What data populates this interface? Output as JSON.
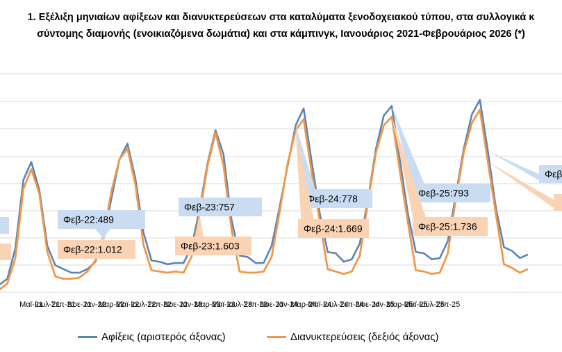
{
  "title_line1": "1. Εξέλιξη μηνιαίων αφίξεων και διανυκτερεύσεων στα καταλύματα ξενοδοχειακού τύπου, στα συλλογικά κ",
  "title_line2": "σύντομης διαμονής (ενοικιαζόμενα δωμάτια) και στα κάμπινγκ, Ιανουάριος 2021-Φεβρουάριος 2026 (*)",
  "colors": {
    "arrivals": "#5b84b4",
    "nights": "#f0974a",
    "arrivals_label_bg": "#c9dcf2",
    "nights_label_bg": "#f9d3b3",
    "grid": "#d9d9d9"
  },
  "chart_data": {
    "type": "line",
    "x_tick_labels": [
      "Μαϊ-21",
      "Ιουλ-21",
      "Σεπ-21",
      "Νοε-21",
      "Ιαν-22",
      "Μαρ-22",
      "Μαϊ-22",
      "Ιουλ-22",
      "Σεπ-22",
      "Νοε-22",
      "Ιαν-23",
      "Μαρ-23",
      "Μαϊ-23",
      "Ιουλ-23",
      "Σεπ-23",
      "Νοε-23",
      "Ιαν-24",
      "Μαρ-24",
      "Μαϊ-24",
      "Ιουλ-24",
      "Σεπ-24",
      "Νοε-24",
      "Ιαν-25",
      "Μαρ-25",
      "Μαϊ-25",
      "Ιουλ-25",
      "Σεπ-25"
    ],
    "series": [
      {
        "name": "Αφίξεις (αριστερός άξονας)",
        "axis": "left",
        "values": [
          0.06,
          0.11,
          0.36,
          0.92,
          1.07,
          0.84,
          0.38,
          0.22,
          0.19,
          0.16,
          0.16,
          0.19,
          0.25,
          0.44,
          0.77,
          1.09,
          1.22,
          0.93,
          0.49,
          0.26,
          0.25,
          0.23,
          0.24,
          0.24,
          0.37,
          0.68,
          1.06,
          1.33,
          1.13,
          0.59,
          0.3,
          0.29,
          0.24,
          0.24,
          0.38,
          0.7,
          1.04,
          1.37,
          1.51,
          1.07,
          0.65,
          0.33,
          0.32,
          0.25,
          0.27,
          0.4,
          0.75,
          1.17,
          1.45,
          1.53,
          1.09,
          0.65,
          0.33,
          0.32,
          0.27,
          0.28,
          0.42,
          0.8,
          1.18,
          1.46,
          1.58,
          1.16,
          0.69,
          0.37,
          0.34,
          0.28,
          0.31
        ]
      },
      {
        "name": "Διανυκτερεύσεις (δεξιός άξονας)",
        "axis": "right",
        "values": [
          0.02,
          0.07,
          0.28,
          0.85,
          1.01,
          0.81,
          0.33,
          0.13,
          0.11,
          0.11,
          0.12,
          0.17,
          0.26,
          0.46,
          0.83,
          1.09,
          1.18,
          0.88,
          0.39,
          0.18,
          0.17,
          0.16,
          0.17,
          0.16,
          0.29,
          0.64,
          1.04,
          1.31,
          1.04,
          0.51,
          0.17,
          0.16,
          0.16,
          0.17,
          0.29,
          0.66,
          1.06,
          1.33,
          1.42,
          0.98,
          0.59,
          0.19,
          0.17,
          0.15,
          0.17,
          0.3,
          0.73,
          1.14,
          1.37,
          1.44,
          1.0,
          0.58,
          0.18,
          0.17,
          0.15,
          0.16,
          0.32,
          0.77,
          1.15,
          1.39,
          1.5,
          1.07,
          0.64,
          0.23,
          0.2,
          0.16,
          0.19
        ]
      }
    ],
    "annotations": [
      {
        "series": "arrivals",
        "text": "Φεβ-22:489"
      },
      {
        "series": "nights",
        "text": "Φεβ-22:1.012"
      },
      {
        "series": "arrivals",
        "text": "Φεβ-23:757"
      },
      {
        "series": "nights",
        "text": "Φεβ-23:1.603"
      },
      {
        "series": "arrivals",
        "text": "Φεβ-24:778"
      },
      {
        "series": "nights",
        "text": "Φεβ-24:1.669"
      },
      {
        "series": "arrivals",
        "text": "Φεβ-25:793"
      },
      {
        "series": "nights",
        "text": "Φεβ-25:1.736"
      },
      {
        "series": "arrivals",
        "text": "Φεβ"
      },
      {
        "series": "nights",
        "text": ""
      },
      {
        "series": "arrivals",
        "text": ""
      },
      {
        "series": "nights",
        "text": ""
      }
    ],
    "legend": [
      {
        "label": "Αφίξεις (αριστερός άξονας)"
      },
      {
        "label": "Διανυκτερεύσεις (δεξιός άξονας)"
      }
    ]
  }
}
